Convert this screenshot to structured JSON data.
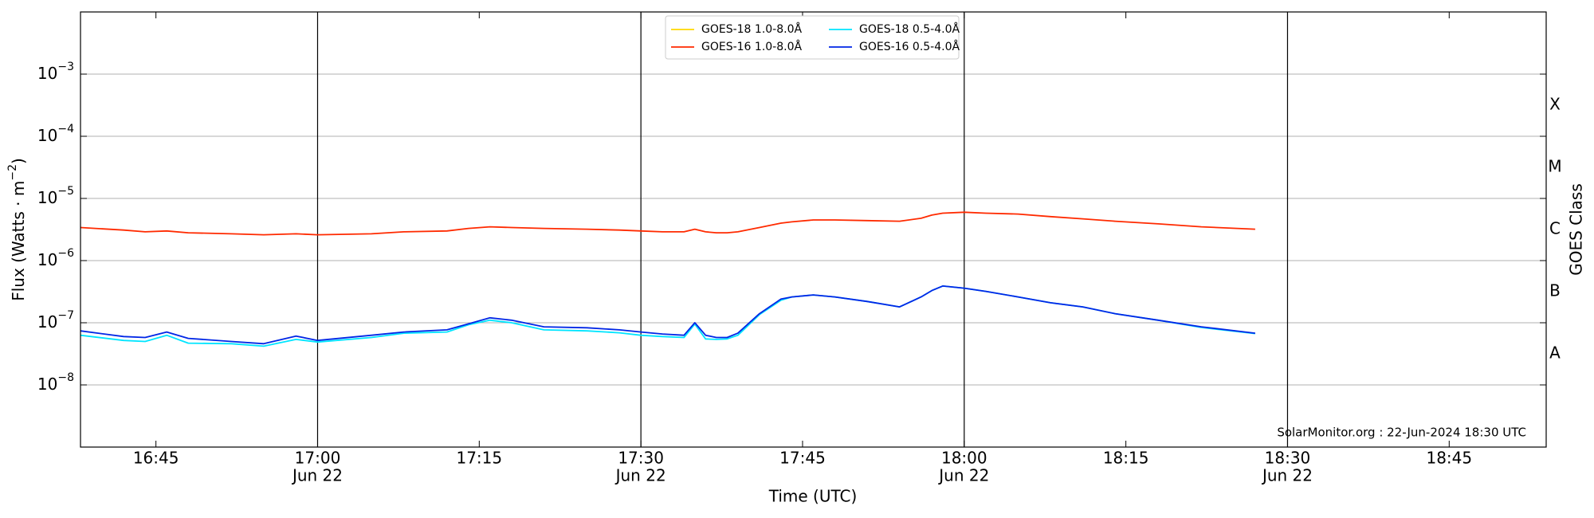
{
  "chart_data": {
    "type": "line",
    "xlabel": "Time (UTC)",
    "ylabel": "Flux (Watts · m",
    "ylabel_exponent": "−2",
    "ylabel_close": ")",
    "log_y": true,
    "grid": true,
    "legend": "upper center",
    "legend_columns": 2,
    "annotation": "SolarMonitor.org : 22-Jun-2024 18:30 UTC",
    "xlim": [
      "16:38",
      "18:54"
    ],
    "ylim": [
      1e-09,
      0.01
    ],
    "xticks": [
      {
        "value": "16:45",
        "label": "16:45"
      },
      {
        "value": "17:00",
        "label": "17:00",
        "sublabel": "Jun 22"
      },
      {
        "value": "17:15",
        "label": "17:15"
      },
      {
        "value": "17:30",
        "label": "17:30",
        "sublabel": "Jun 22"
      },
      {
        "value": "17:45",
        "label": "17:45"
      },
      {
        "value": "18:00",
        "label": "18:00",
        "sublabel": "Jun 22"
      },
      {
        "value": "18:15",
        "label": "18:15"
      },
      {
        "value": "18:30",
        "label": "18:30",
        "sublabel": "Jun 22"
      },
      {
        "value": "18:45",
        "label": "18:45"
      }
    ],
    "vlines": [
      "17:00",
      "17:30",
      "18:00",
      "18:30"
    ],
    "yticks": [
      {
        "value": 1e-08,
        "label": "10",
        "exponent": "−8"
      },
      {
        "value": 1e-07,
        "label": "10",
        "exponent": "−7"
      },
      {
        "value": 1e-06,
        "label": "10",
        "exponent": "−6"
      },
      {
        "value": 1e-05,
        "label": "10",
        "exponent": "−5"
      },
      {
        "value": 0.0001,
        "label": "10",
        "exponent": "−4"
      },
      {
        "value": 0.001,
        "label": "10",
        "exponent": "−3"
      }
    ],
    "y2label": "GOES Class",
    "classes": [
      {
        "label": "A",
        "value": 1e-08
      },
      {
        "label": "B",
        "value": 1e-07
      },
      {
        "label": "C",
        "value": 1e-06
      },
      {
        "label": "M",
        "value": 1e-05
      },
      {
        "label": "X",
        "value": 0.0001
      }
    ],
    "x": [
      "16:38",
      "16:42",
      "16:44",
      "16:46",
      "16:48",
      "16:52",
      "16:55",
      "16:58",
      "17:00",
      "17:05",
      "17:08",
      "17:12",
      "17:14",
      "17:16",
      "17:18",
      "17:21",
      "17:25",
      "17:28",
      "17:30",
      "17:32",
      "17:34",
      "17:35",
      "17:36",
      "17:37",
      "17:38",
      "17:39",
      "17:41",
      "17:43",
      "17:44",
      "17:46",
      "17:48",
      "17:51",
      "17:54",
      "17:56",
      "17:57",
      "17:58",
      "18:00",
      "18:02",
      "18:05",
      "18:08",
      "18:11",
      "18:14",
      "18:18",
      "18:22",
      "18:27"
    ],
    "series": [
      {
        "name": "GOES-18 1.0-8.0Å",
        "color": "#ffd700",
        "values": [
          null,
          null,
          null,
          null,
          null,
          null,
          null,
          null,
          null,
          null,
          null,
          null,
          null,
          null,
          null,
          null,
          null,
          null,
          null,
          null,
          null,
          null,
          null,
          null,
          null,
          null,
          null,
          null,
          null,
          null,
          null,
          null,
          null,
          null,
          null,
          null,
          null,
          null,
          null,
          null,
          null,
          null,
          null,
          null,
          null
        ]
      },
      {
        "name": "GOES-16 1.0-8.0Å",
        "color": "#ff2a00",
        "values": [
          3.4e-06,
          3.1e-06,
          2.9e-06,
          3e-06,
          2.8e-06,
          2.7e-06,
          2.6e-06,
          2.7e-06,
          2.6e-06,
          2.7e-06,
          2.9e-06,
          3e-06,
          3.3e-06,
          3.5e-06,
          3.4e-06,
          3.3e-06,
          3.2e-06,
          3.1e-06,
          3e-06,
          2.9e-06,
          2.9e-06,
          3.2e-06,
          2.9e-06,
          2.8e-06,
          2.8e-06,
          2.9e-06,
          3.4e-06,
          4e-06,
          4.2e-06,
          4.5e-06,
          4.5e-06,
          4.4e-06,
          4.3e-06,
          4.8e-06,
          5.4e-06,
          5.8e-06,
          6e-06,
          5.8e-06,
          5.6e-06,
          5.1e-06,
          4.7e-06,
          4.3e-06,
          3.9e-06,
          3.5e-06,
          3.2e-06
        ]
      },
      {
        "name": "GOES-18 0.5-4.0Å",
        "color": "#00e5ff",
        "values": [
          6.3e-08,
          5.2e-08,
          5e-08,
          6.3e-08,
          4.7e-08,
          4.6e-08,
          4.2e-08,
          5.4e-08,
          4.9e-08,
          5.8e-08,
          6.8e-08,
          7.1e-08,
          9.3e-08,
          1.1e-07,
          1e-07,
          7.7e-08,
          7.4e-08,
          6.9e-08,
          6.3e-08,
          6e-08,
          5.8e-08,
          9.5e-08,
          5.5e-08,
          5.4e-08,
          5.5e-08,
          6.3e-08,
          1.35e-07,
          2.3e-07,
          2.6e-07,
          2.8e-07,
          2.6e-07,
          2.2e-07,
          1.8e-07,
          2.6e-07,
          3.3e-07,
          3.9e-07,
          3.6e-07,
          3.2e-07,
          2.6e-07,
          2.1e-07,
          1.8e-07,
          1.4e-07,
          1.1e-07,
          8.4e-08,
          6.7e-08
        ]
      },
      {
        "name": "GOES-16 0.5-4.0Å",
        "color": "#0026e6",
        "values": [
          7.4e-08,
          6e-08,
          5.8e-08,
          7.1e-08,
          5.6e-08,
          5e-08,
          4.6e-08,
          6.1e-08,
          5.2e-08,
          6.3e-08,
          7.1e-08,
          7.7e-08,
          9.6e-08,
          1.2e-07,
          1.1e-07,
          8.6e-08,
          8.3e-08,
          7.7e-08,
          7.1e-08,
          6.6e-08,
          6.3e-08,
          1e-07,
          6.3e-08,
          5.8e-08,
          5.8e-08,
          6.8e-08,
          1.4e-07,
          2.4e-07,
          2.6e-07,
          2.8e-07,
          2.6e-07,
          2.2e-07,
          1.8e-07,
          2.6e-07,
          3.3e-07,
          3.9e-07,
          3.6e-07,
          3.2e-07,
          2.6e-07,
          2.1e-07,
          1.8e-07,
          1.4e-07,
          1.1e-07,
          8.6e-08,
          6.8e-08
        ]
      }
    ]
  }
}
